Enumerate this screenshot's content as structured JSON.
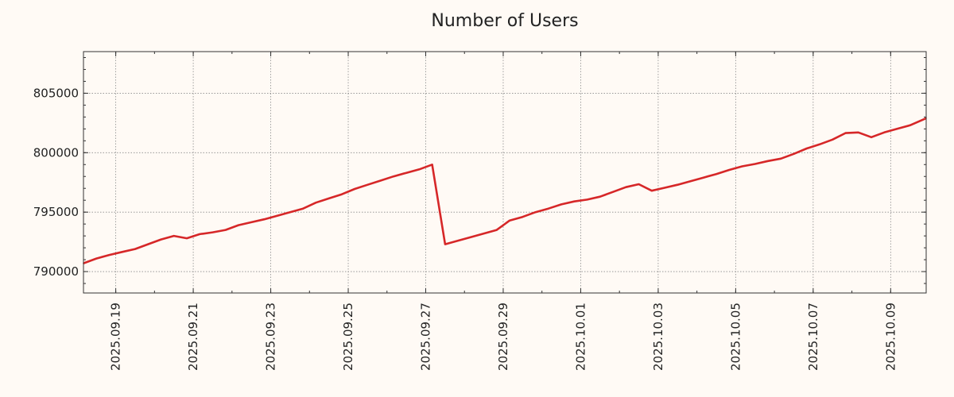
{
  "chart_data": {
    "type": "line",
    "title": "Number of Users",
    "xlabel": "",
    "ylabel": "",
    "grid": true,
    "x_tick_labels": [
      "2025.09.19",
      "2025.09.21",
      "2025.09.23",
      "2025.09.25",
      "2025.09.27",
      "2025.09.29",
      "2025.10.01",
      "2025.10.03",
      "2025.10.05",
      "2025.10.07",
      "2025.10.09"
    ],
    "y_ticks": [
      790000,
      795000,
      800000,
      805000
    ],
    "y_tick_labels": [
      "790000",
      "795000",
      "800000",
      "805000"
    ],
    "xlim": [
      "2025-09-18T04:00",
      "2025-10-09T22:00"
    ],
    "ylim": [
      788200,
      808500
    ],
    "series": [
      {
        "color": "#d62728",
        "x": [
          "2025-09-18T04:00",
          "2025-09-18T12:00",
          "2025-09-18T20:00",
          "2025-09-19T04:00",
          "2025-09-19T12:00",
          "2025-09-19T20:00",
          "2025-09-20T04:00",
          "2025-09-20T12:00",
          "2025-09-20T20:00",
          "2025-09-21T04:00",
          "2025-09-21T12:00",
          "2025-09-21T20:00",
          "2025-09-22T04:00",
          "2025-09-22T12:00",
          "2025-09-22T20:00",
          "2025-09-23T04:00",
          "2025-09-23T12:00",
          "2025-09-23T20:00",
          "2025-09-24T04:00",
          "2025-09-24T12:00",
          "2025-09-24T20:00",
          "2025-09-25T04:00",
          "2025-09-25T12:00",
          "2025-09-25T20:00",
          "2025-09-26T04:00",
          "2025-09-26T12:00",
          "2025-09-26T20:00",
          "2025-09-27T04:00",
          "2025-09-27T12:00",
          "2025-09-27T20:00",
          "2025-09-28T04:00",
          "2025-09-28T12:00",
          "2025-09-28T20:00",
          "2025-09-29T04:00",
          "2025-09-29T12:00",
          "2025-09-29T20:00",
          "2025-09-30T04:00",
          "2025-09-30T12:00",
          "2025-09-30T20:00",
          "2025-10-01T04:00",
          "2025-10-01T12:00",
          "2025-10-01T20:00",
          "2025-10-02T04:00",
          "2025-10-02T12:00",
          "2025-10-02T20:00",
          "2025-10-03T04:00",
          "2025-10-03T12:00",
          "2025-10-03T20:00",
          "2025-10-04T04:00",
          "2025-10-04T12:00",
          "2025-10-04T20:00",
          "2025-10-05T04:00",
          "2025-10-05T12:00",
          "2025-10-05T20:00",
          "2025-10-06T04:00",
          "2025-10-06T12:00",
          "2025-10-06T20:00",
          "2025-10-07T04:00",
          "2025-10-07T12:00",
          "2025-10-07T20:00",
          "2025-10-08T04:00",
          "2025-10-08T12:00",
          "2025-10-08T20:00",
          "2025-10-09T04:00",
          "2025-10-09T12:00",
          "2025-10-09T22:00"
        ],
        "y": [
          790700,
          791100,
          791400,
          791650,
          791900,
          792300,
          792700,
          793000,
          792800,
          793150,
          793300,
          793500,
          793900,
          794150,
          794400,
          794700,
          795000,
          795300,
          795800,
          796150,
          796500,
          796950,
          797300,
          797650,
          798000,
          798300,
          798600,
          799000,
          792300,
          792600,
          792900,
          793200,
          793500,
          794300,
          794600,
          795000,
          795300,
          795650,
          795900,
          796050,
          796300,
          796700,
          797100,
          797350,
          796800,
          797050,
          797300,
          797600,
          797900,
          798200,
          798550,
          798850,
          799050,
          799300,
          799500,
          799900,
          800350,
          800700,
          801100,
          801650,
          801700,
          801300,
          801700,
          802000,
          802300,
          802900
        ]
      }
    ]
  }
}
